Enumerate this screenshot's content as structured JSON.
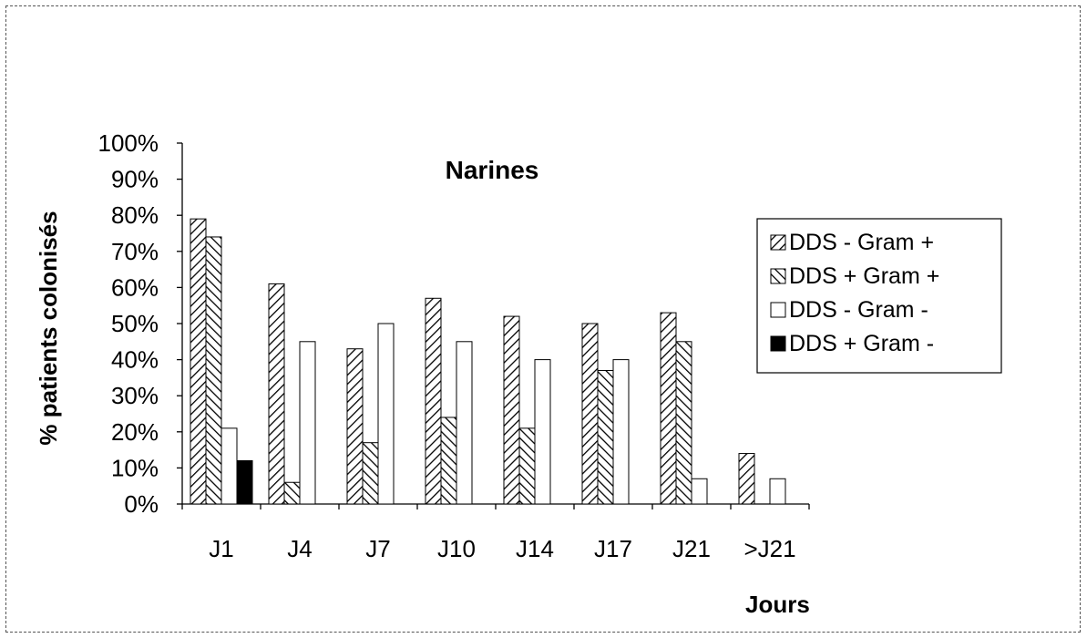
{
  "chart_data": {
    "type": "bar",
    "title": "Narines",
    "xlabel": "Jours",
    "ylabel": "% patients colonisés",
    "categories": [
      "J1",
      "J4",
      "J7",
      "J10",
      "J14",
      "J17",
      "J21",
      ">J21"
    ],
    "ylim": [
      0,
      100
    ],
    "yticks": [
      "0%",
      "10%",
      "20%",
      "30%",
      "40%",
      "50%",
      "60%",
      "70%",
      "80%",
      "90%",
      "100%"
    ],
    "grid": false,
    "legend_position": "right",
    "series": [
      {
        "name": "DDS - Gram +",
        "pattern": "hatch-forward",
        "values": [
          79,
          61,
          43,
          57,
          52,
          50,
          53,
          14
        ]
      },
      {
        "name": "DDS + Gram +",
        "pattern": "hatch-backward",
        "values": [
          74,
          6,
          17,
          24,
          21,
          37,
          45,
          0
        ]
      },
      {
        "name": "DDS - Gram -",
        "pattern": "white",
        "values": [
          21,
          45,
          50,
          45,
          40,
          40,
          7,
          7
        ]
      },
      {
        "name": "DDS + Gram -",
        "pattern": "black",
        "values": [
          12,
          0,
          0,
          0,
          0,
          0,
          0,
          0
        ]
      }
    ]
  }
}
